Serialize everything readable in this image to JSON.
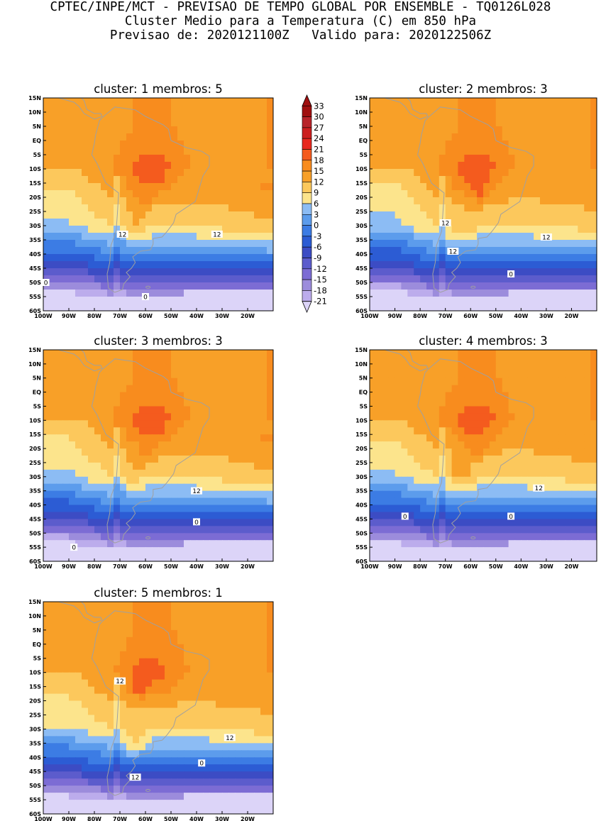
{
  "header": {
    "line1": "CPTEC/INPE/MCT - PREVISAO DE TEMPO GLOBAL POR ENSEMBLE - TQ0126L028",
    "line2": "Cluster Medio para a Temperatura (C) em 850 hPa",
    "line3": "Previsao de: 2020121100Z   Valido para: 2020122506Z"
  },
  "lat_labels": [
    "15N",
    "10N",
    "5N",
    "EQ",
    "5S",
    "10S",
    "15S",
    "20S",
    "25S",
    "30S",
    "35S",
    "40S",
    "45S",
    "50S",
    "55S",
    "60S"
  ],
  "lon_labels": [
    "100W",
    "90W",
    "80W",
    "70W",
    "60W",
    "50W",
    "40W",
    "30W",
    "20W"
  ],
  "panels": [
    {
      "title": "cluster: 1   membros: 5",
      "contour_labels": [
        {
          "text": "12",
          "lon": -69,
          "lat": -33
        },
        {
          "text": "12",
          "lon": -32,
          "lat": -33
        },
        {
          "text": "0",
          "lon": -99,
          "lat": -50
        },
        {
          "text": "0",
          "lon": -60,
          "lat": -55
        }
      ]
    },
    {
      "title": "cluster: 2   membros: 3",
      "contour_labels": [
        {
          "text": "12",
          "lon": -70,
          "lat": -29
        },
        {
          "text": "12",
          "lon": -67,
          "lat": -39
        },
        {
          "text": "12",
          "lon": -30,
          "lat": -34
        },
        {
          "text": "0",
          "lon": -44,
          "lat": -47
        }
      ]
    },
    {
      "title": "cluster: 3   membros: 3",
      "contour_labels": [
        {
          "text": "12",
          "lon": -40,
          "lat": -35
        },
        {
          "text": "0",
          "lon": -40,
          "lat": -46
        },
        {
          "text": "0",
          "lon": -88,
          "lat": -55
        }
      ]
    },
    {
      "title": "cluster: 4   membros: 3",
      "contour_labels": [
        {
          "text": "12",
          "lon": -33,
          "lat": -34
        },
        {
          "text": "0",
          "lon": -86,
          "lat": -44
        },
        {
          "text": "0",
          "lon": -44,
          "lat": -44
        }
      ]
    },
    {
      "title": "cluster: 5   membros: 1",
      "contour_labels": [
        {
          "text": "12",
          "lon": -70,
          "lat": -13
        },
        {
          "text": "12",
          "lon": -27,
          "lat": -33
        },
        {
          "text": "12",
          "lon": -64,
          "lat": -47
        },
        {
          "text": "0",
          "lon": -38,
          "lat": -42
        }
      ]
    }
  ],
  "colorbar": {
    "labels": [
      "33",
      "30",
      "27",
      "24",
      "21",
      "18",
      "15",
      "12",
      "9",
      "6",
      "3",
      "0",
      "-3",
      "-6",
      "-9",
      "-12",
      "-15",
      "-18",
      "-21"
    ],
    "colors": [
      "#a01010",
      "#b8242a",
      "#cc1f1f",
      "#e8281e",
      "#f45b1e",
      "#f88c1e",
      "#f8a028",
      "#fcc85c",
      "#fce48c",
      "#8cbcf4",
      "#5c9cec",
      "#3c7ce4",
      "#2c5cd4",
      "#3c4cc4",
      "#5c5ccc",
      "#7c6cd4",
      "#9c8cdc",
      "#bcacec",
      "#dcd4f8"
    ]
  }
}
